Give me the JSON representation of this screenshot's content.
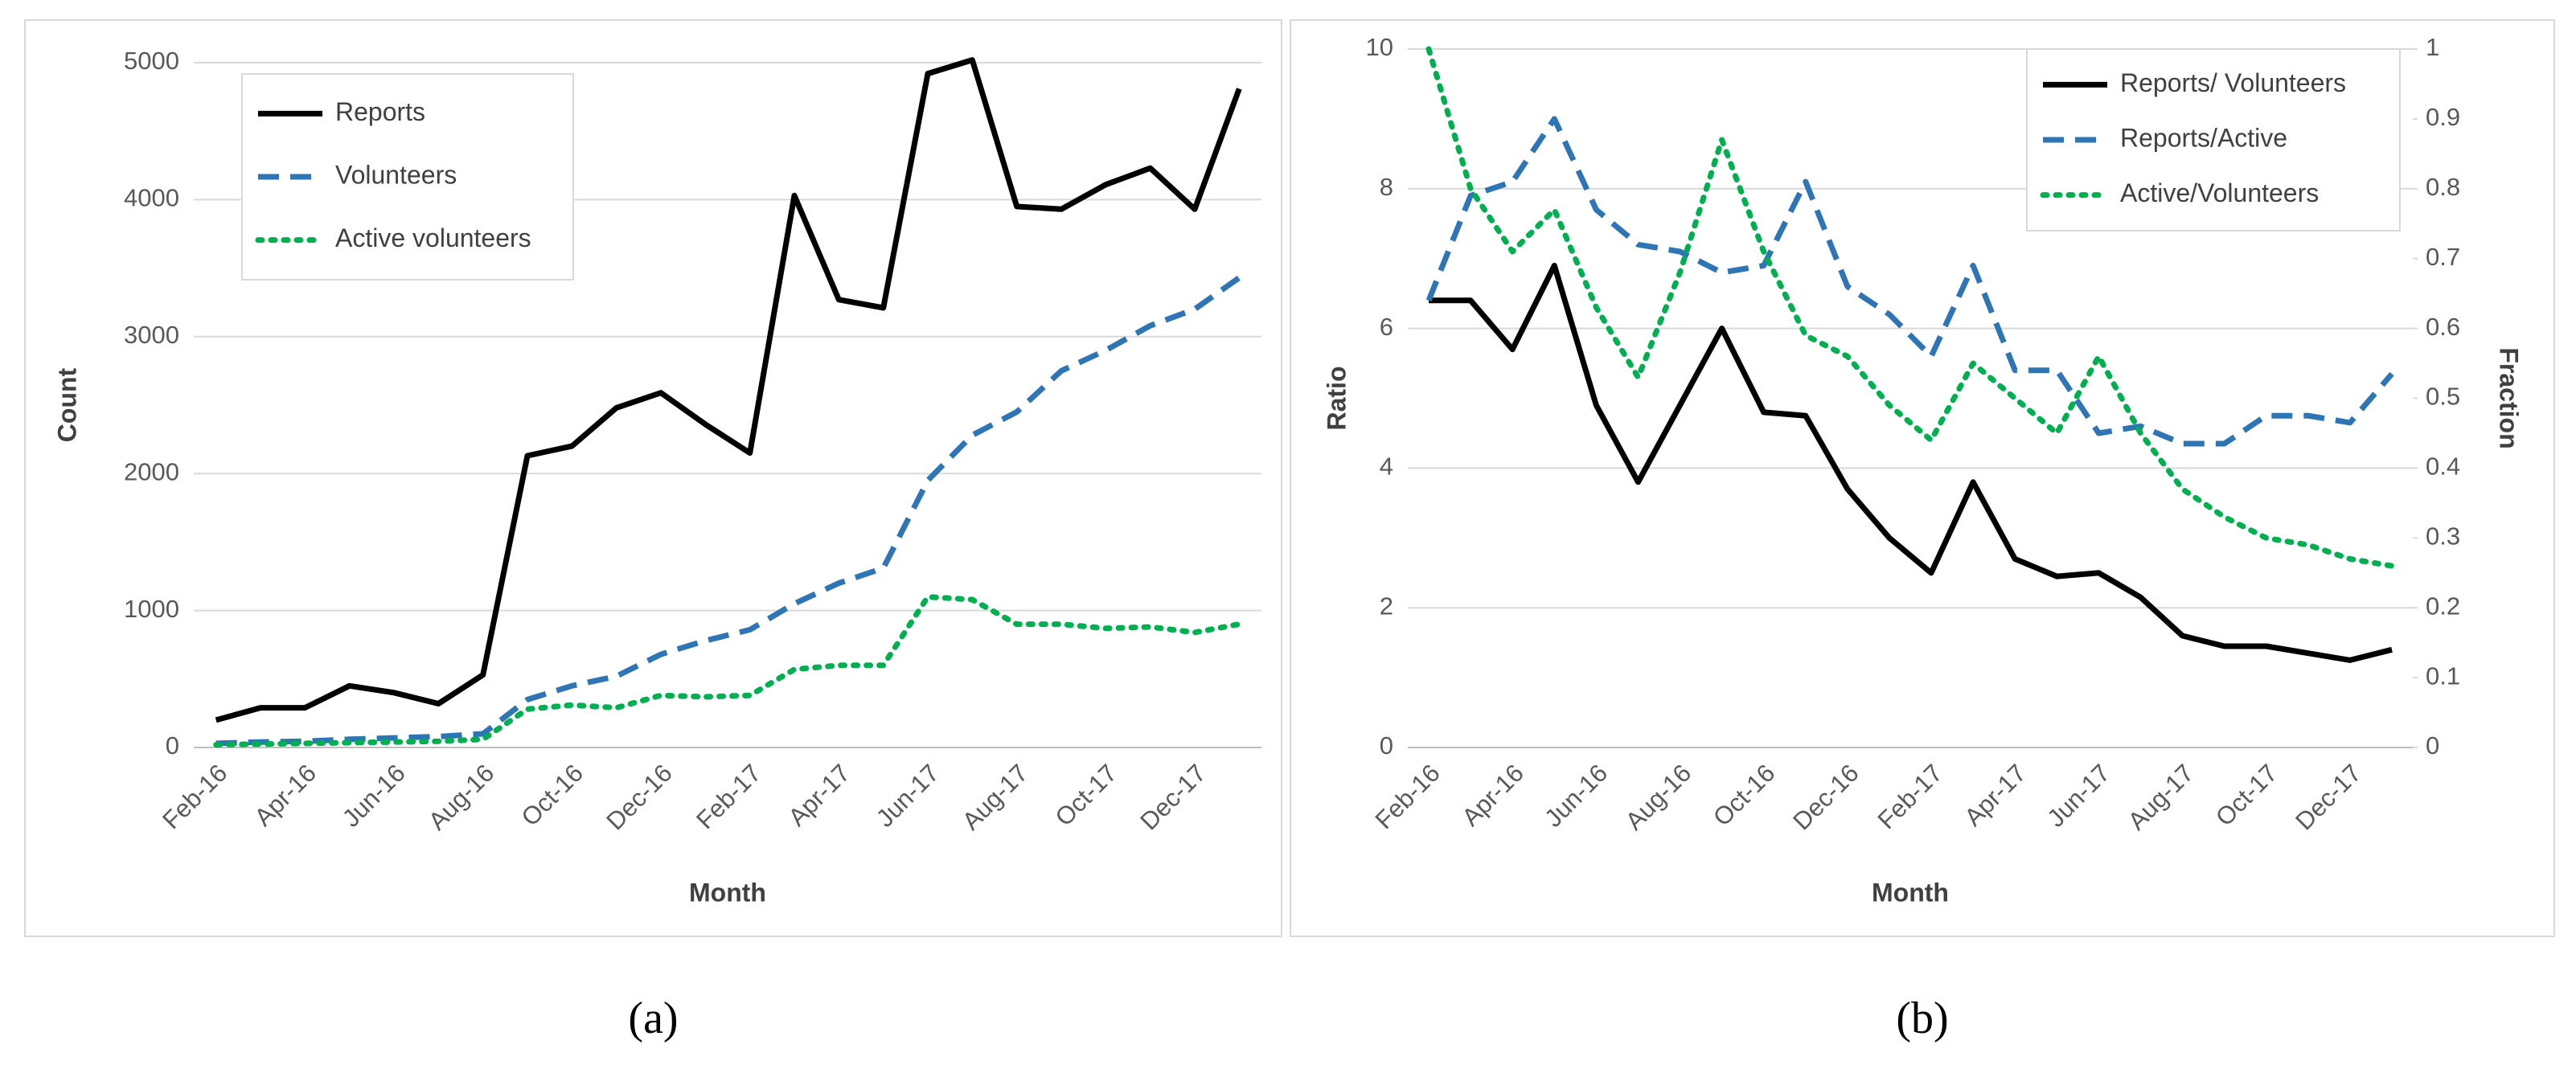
{
  "chart_data": [
    {
      "type": "line",
      "caption": "(a)",
      "xlabel": "Month",
      "ylabel": "Count",
      "categories": [
        "Feb-16",
        null,
        "Apr-16",
        null,
        "Jun-16",
        null,
        "Aug-16",
        null,
        "Oct-16",
        null,
        "Dec-16",
        null,
        "Feb-17",
        null,
        "Apr-17",
        null,
        "Jun-17",
        null,
        "Aug-17",
        null,
        "Oct-17",
        null,
        "Dec-17",
        null
      ],
      "ylim": [
        0,
        5000
      ],
      "yticks": [
        0,
        1000,
        2000,
        3000,
        4000,
        5000
      ],
      "grid": true,
      "legend": "upper left",
      "series": [
        {
          "name": "Reports",
          "color": "#000000",
          "style": "solid",
          "values": [
            200,
            290,
            290,
            450,
            400,
            320,
            530,
            2130,
            2200,
            2480,
            2590,
            2360,
            2150,
            4030,
            3270,
            3210,
            4920,
            5020,
            3950,
            3930,
            4110,
            4230,
            3930,
            4810
          ]
        },
        {
          "name": "Volunteers",
          "color": "#2e75b6",
          "style": "dashed",
          "values": [
            30,
            40,
            45,
            60,
            70,
            80,
            100,
            350,
            450,
            520,
            680,
            780,
            860,
            1050,
            1200,
            1310,
            1950,
            2280,
            2450,
            2750,
            2900,
            3080,
            3200,
            3430
          ]
        },
        {
          "name": "Active volunteers",
          "color": "#00b050",
          "style": "dotted",
          "values": [
            20,
            25,
            30,
            35,
            40,
            45,
            60,
            280,
            310,
            290,
            380,
            370,
            380,
            570,
            600,
            600,
            1100,
            1080,
            900,
            900,
            870,
            880,
            840,
            900
          ]
        }
      ]
    },
    {
      "type": "line",
      "caption": "(b)",
      "xlabel": "Month",
      "ylabel": "Ratio",
      "y2label": "Fraction",
      "categories": [
        "Feb-16",
        null,
        "Apr-16",
        null,
        "Jun-16",
        null,
        "Aug-16",
        null,
        "Oct-16",
        null,
        "Dec-16",
        null,
        "Feb-17",
        null,
        "Apr-17",
        null,
        "Jun-17",
        null,
        "Aug-17",
        null,
        "Oct-17",
        null,
        "Dec-17",
        null
      ],
      "ylim": [
        0,
        10
      ],
      "yticks": [
        0,
        2,
        4,
        6,
        8,
        10
      ],
      "y2lim": [
        0,
        1
      ],
      "y2ticks": [
        0,
        0.1,
        0.2,
        0.3,
        0.4,
        0.5,
        0.6,
        0.7,
        0.8,
        0.9,
        1
      ],
      "grid": true,
      "legend": "upper right",
      "series": [
        {
          "name": "Reports/ Volunteers",
          "color": "#000000",
          "style": "solid",
          "values": [
            6.4,
            6.4,
            5.7,
            6.9,
            4.9,
            3.8,
            4.9,
            6.0,
            4.8,
            4.75,
            3.7,
            3.0,
            2.5,
            3.8,
            2.7,
            2.45,
            2.5,
            2.15,
            1.6,
            1.45,
            1.45,
            1.35,
            1.25,
            1.4
          ]
        },
        {
          "name": "Reports/Active",
          "color": "#2e75b6",
          "style": "dashed",
          "values": [
            6.4,
            7.9,
            8.1,
            9.0,
            7.7,
            7.2,
            7.1,
            6.8,
            6.9,
            8.1,
            6.6,
            6.2,
            5.6,
            6.9,
            5.4,
            5.4,
            4.5,
            4.6,
            4.35,
            4.35,
            4.75,
            4.75,
            4.65,
            5.35
          ]
        },
        {
          "name": "Active/Volunteers",
          "color": "#00b050",
          "style": "dotted",
          "axis": "y2",
          "values": [
            1.0,
            0.8,
            0.71,
            0.77,
            0.63,
            0.53,
            0.68,
            0.87,
            0.71,
            0.59,
            0.56,
            0.49,
            0.44,
            0.55,
            0.5,
            0.45,
            0.56,
            0.45,
            0.37,
            0.33,
            0.3,
            0.29,
            0.27,
            0.26
          ]
        }
      ]
    }
  ]
}
